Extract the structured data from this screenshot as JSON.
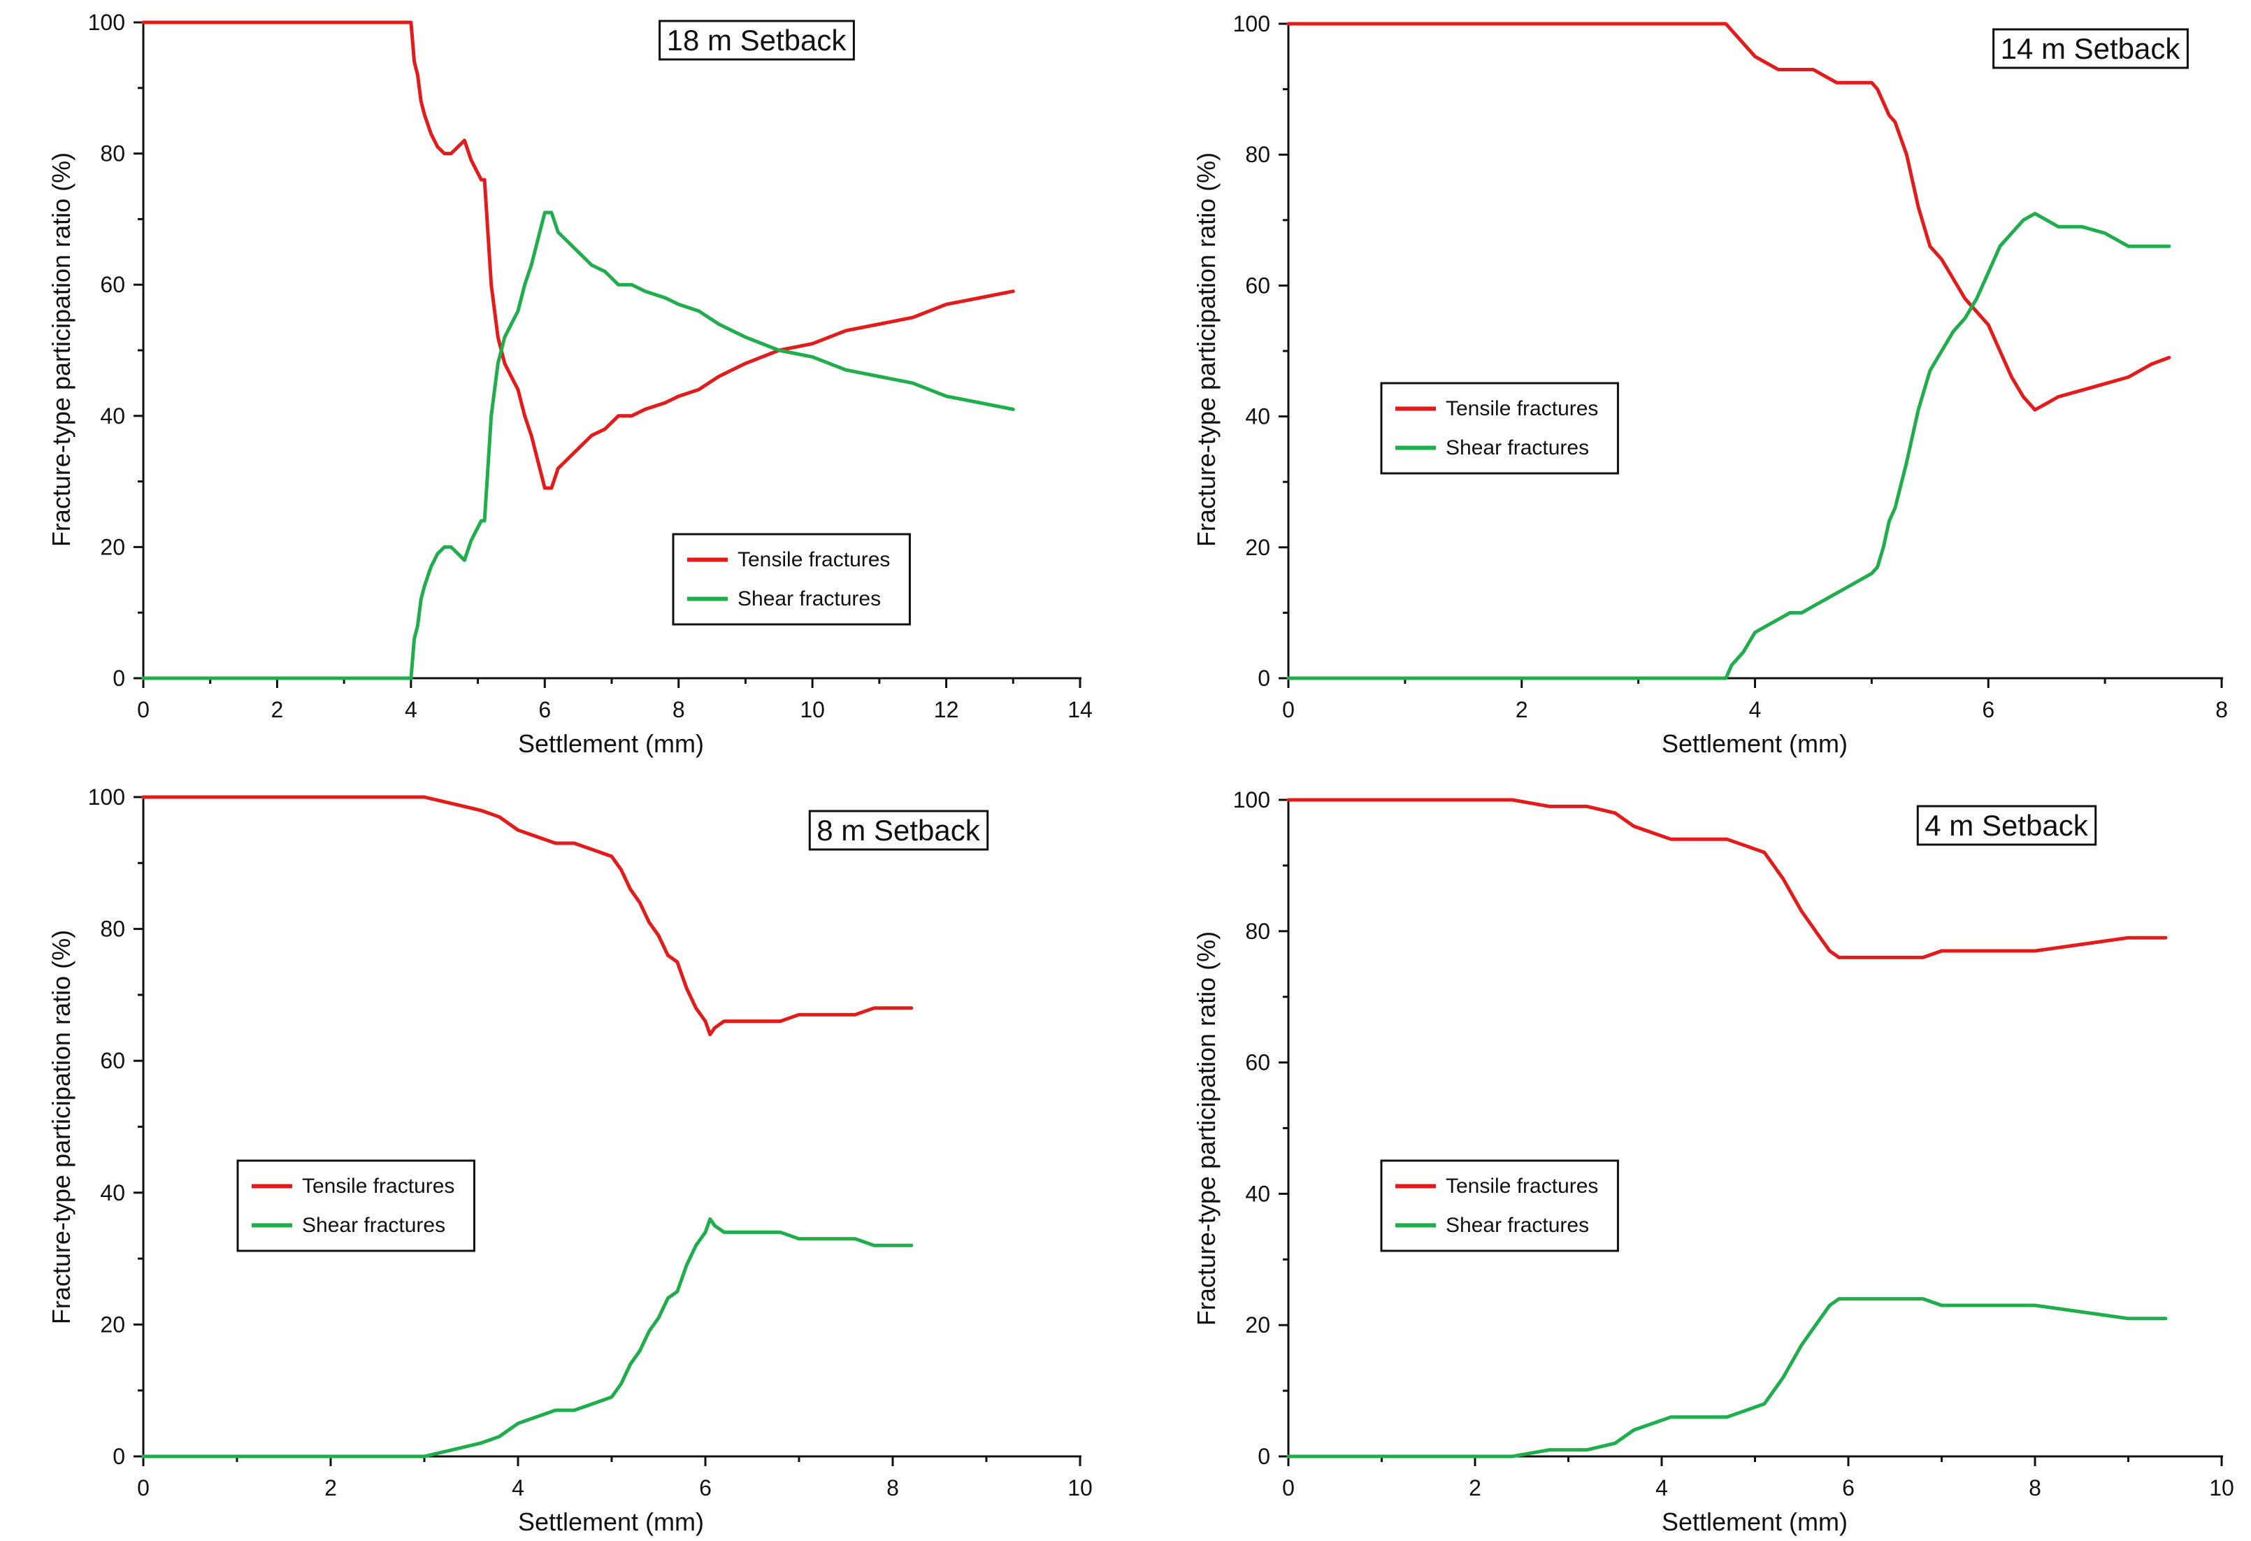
{
  "chart_data": [
    {
      "type": "line",
      "title": "18 m Setback",
      "xlabel": "Settlement (mm)",
      "ylabel": "Fracture-type participation ratio (%)",
      "xlim": [
        0,
        14
      ],
      "ylim": [
        0,
        100
      ],
      "xticks": [
        0,
        2,
        4,
        6,
        8,
        10,
        12,
        14
      ],
      "yticks": [
        0,
        20,
        40,
        60,
        80,
        100
      ],
      "legend_position": "lower-center",
      "series": [
        {
          "name": "Tensile fractures",
          "color": "#e31b1b",
          "x": [
            0,
            4.0,
            4.05,
            4.1,
            4.15,
            4.2,
            4.3,
            4.4,
            4.5,
            4.6,
            4.7,
            4.8,
            4.9,
            5.0,
            5.05,
            5.1,
            5.15,
            5.2,
            5.3,
            5.4,
            5.5,
            5.6,
            5.7,
            5.8,
            5.9,
            6.0,
            6.1,
            6.2,
            6.3,
            6.5,
            6.7,
            6.9,
            7.1,
            7.3,
            7.5,
            7.8,
            8.0,
            8.3,
            8.6,
            9.0,
            9.5,
            10.0,
            10.5,
            11.0,
            11.5,
            12.0,
            12.5,
            13.0
          ],
          "y": [
            100,
            100,
            94,
            92,
            88,
            86,
            83,
            81,
            80,
            80,
            81,
            82,
            79,
            77,
            76,
            76,
            68,
            60,
            52,
            48,
            46,
            44,
            40,
            37,
            33,
            29,
            29,
            32,
            33,
            35,
            37,
            38,
            40,
            40,
            41,
            42,
            43,
            44,
            46,
            48,
            50,
            51,
            53,
            54,
            55,
            57,
            58,
            59
          ]
        },
        {
          "name": "Shear fractures",
          "color": "#1fae4b",
          "x": [
            0,
            4.0,
            4.05,
            4.1,
            4.15,
            4.2,
            4.3,
            4.4,
            4.5,
            4.6,
            4.7,
            4.8,
            4.9,
            5.0,
            5.05,
            5.1,
            5.15,
            5.2,
            5.3,
            5.4,
            5.5,
            5.6,
            5.7,
            5.8,
            5.9,
            6.0,
            6.1,
            6.2,
            6.3,
            6.5,
            6.7,
            6.9,
            7.1,
            7.3,
            7.5,
            7.8,
            8.0,
            8.3,
            8.6,
            9.0,
            9.5,
            10.0,
            10.5,
            11.0,
            11.5,
            12.0,
            12.5,
            13.0
          ],
          "y": [
            0,
            0,
            6,
            8,
            12,
            14,
            17,
            19,
            20,
            20,
            19,
            18,
            21,
            23,
            24,
            24,
            32,
            40,
            48,
            52,
            54,
            56,
            60,
            63,
            67,
            71,
            71,
            68,
            67,
            65,
            63,
            62,
            60,
            60,
            59,
            58,
            57,
            56,
            54,
            52,
            50,
            49,
            47,
            46,
            45,
            43,
            42,
            41
          ]
        }
      ]
    },
    {
      "type": "line",
      "title": "14 m Setback",
      "xlabel": "Settlement (mm)",
      "ylabel": "Fracture-type participation ratio (%)",
      "xlim": [
        0,
        8
      ],
      "ylim": [
        0,
        100
      ],
      "xticks": [
        0,
        2,
        4,
        6,
        8
      ],
      "yticks": [
        0,
        20,
        40,
        60,
        80,
        100
      ],
      "legend_position": "center-left",
      "series": [
        {
          "name": "Tensile fractures",
          "color": "#e31b1b",
          "x": [
            0,
            3.75,
            3.8,
            3.9,
            4.0,
            4.1,
            4.2,
            4.3,
            4.4,
            4.5,
            4.6,
            4.7,
            4.8,
            4.9,
            5.0,
            5.05,
            5.1,
            5.15,
            5.2,
            5.3,
            5.4,
            5.5,
            5.6,
            5.7,
            5.8,
            5.9,
            6.0,
            6.1,
            6.2,
            6.3,
            6.4,
            6.5,
            6.6,
            6.8,
            7.0,
            7.2,
            7.4,
            7.55
          ],
          "y": [
            100,
            100,
            99,
            97,
            95,
            94,
            93,
            93,
            93,
            93,
            92,
            91,
            91,
            91,
            91,
            90,
            88,
            86,
            85,
            80,
            72,
            66,
            64,
            61,
            58,
            56,
            54,
            50,
            46,
            43,
            41,
            42,
            43,
            44,
            45,
            46,
            48,
            49
          ]
        },
        {
          "name": "Shear fractures",
          "color": "#1fae4b",
          "x": [
            0,
            3.75,
            3.8,
            3.9,
            4.0,
            4.1,
            4.2,
            4.3,
            4.4,
            4.5,
            4.6,
            4.7,
            4.8,
            4.9,
            5.0,
            5.05,
            5.1,
            5.15,
            5.2,
            5.3,
            5.4,
            5.5,
            5.6,
            5.7,
            5.8,
            5.9,
            6.0,
            6.1,
            6.2,
            6.3,
            6.4,
            6.5,
            6.6,
            6.8,
            7.0,
            7.2,
            7.4,
            7.55
          ],
          "y": [
            0,
            0,
            2,
            4,
            7,
            8,
            9,
            10,
            10,
            11,
            12,
            13,
            14,
            15,
            16,
            17,
            20,
            24,
            26,
            33,
            41,
            47,
            50,
            53,
            55,
            58,
            62,
            66,
            68,
            70,
            71,
            70,
            69,
            69,
            68,
            66,
            66,
            66
          ]
        }
      ]
    },
    {
      "type": "line",
      "title": "8 m Setback",
      "xlabel": "Settlement (mm)",
      "ylabel": "Fracture-type participation ratio (%)",
      "xlim": [
        0,
        10
      ],
      "ylim": [
        0,
        100
      ],
      "xticks": [
        0,
        2,
        4,
        6,
        8,
        10
      ],
      "yticks": [
        0,
        20,
        40,
        60,
        80,
        100
      ],
      "legend_position": "center-left",
      "series": [
        {
          "name": "Tensile fractures",
          "color": "#e31b1b",
          "x": [
            0,
            3.0,
            3.3,
            3.6,
            3.8,
            4.0,
            4.2,
            4.4,
            4.6,
            4.8,
            5.0,
            5.1,
            5.2,
            5.3,
            5.4,
            5.5,
            5.6,
            5.7,
            5.8,
            5.9,
            6.0,
            6.05,
            6.1,
            6.2,
            6.4,
            6.6,
            6.8,
            7.0,
            7.2,
            7.4,
            7.6,
            7.8,
            8.0,
            8.2
          ],
          "y": [
            100,
            100,
            99,
            98,
            97,
            95,
            94,
            93,
            93,
            92,
            91,
            89,
            86,
            84,
            81,
            79,
            76,
            75,
            71,
            68,
            66,
            64,
            65,
            66,
            66,
            66,
            66,
            67,
            67,
            67,
            67,
            68,
            68,
            68
          ]
        },
        {
          "name": "Shear fractures",
          "color": "#1fae4b",
          "x": [
            0,
            3.0,
            3.3,
            3.6,
            3.8,
            4.0,
            4.2,
            4.4,
            4.6,
            4.8,
            5.0,
            5.1,
            5.2,
            5.3,
            5.4,
            5.5,
            5.6,
            5.7,
            5.8,
            5.9,
            6.0,
            6.05,
            6.1,
            6.2,
            6.4,
            6.6,
            6.8,
            7.0,
            7.2,
            7.4,
            7.6,
            7.8,
            8.0,
            8.2
          ],
          "y": [
            0,
            0,
            1,
            2,
            3,
            5,
            6,
            7,
            7,
            8,
            9,
            11,
            14,
            16,
            19,
            21,
            24,
            25,
            29,
            32,
            34,
            36,
            35,
            34,
            34,
            34,
            34,
            33,
            33,
            33,
            33,
            32,
            32,
            32
          ]
        }
      ]
    },
    {
      "type": "line",
      "title": "4 m Setback",
      "xlabel": "Settlement (mm)",
      "ylabel": "Fracture-type participation ratio (%)",
      "xlim": [
        0,
        10
      ],
      "ylim": [
        0,
        100
      ],
      "xticks": [
        0,
        2,
        4,
        6,
        8,
        10
      ],
      "yticks": [
        0,
        20,
        40,
        60,
        80,
        100
      ],
      "legend_position": "center-left",
      "series": [
        {
          "name": "Tensile fractures",
          "color": "#e31b1b",
          "x": [
            0,
            2.4,
            2.8,
            3.2,
            3.5,
            3.7,
            3.9,
            4.1,
            4.3,
            4.5,
            4.7,
            4.9,
            5.1,
            5.3,
            5.5,
            5.7,
            5.8,
            5.9,
            6.0,
            6.2,
            6.4,
            6.6,
            6.8,
            7.0,
            7.2,
            7.5,
            8.0,
            8.5,
            9.0,
            9.4
          ],
          "y": [
            100,
            100,
            99,
            99,
            98,
            96,
            95,
            94,
            94,
            94,
            94,
            93,
            92,
            88,
            83,
            79,
            77,
            76,
            76,
            76,
            76,
            76,
            76,
            77,
            77,
            77,
            77,
            78,
            79,
            79
          ]
        },
        {
          "name": "Shear fractures",
          "color": "#1fae4b",
          "x": [
            0,
            2.4,
            2.8,
            3.2,
            3.5,
            3.7,
            3.9,
            4.1,
            4.3,
            4.5,
            4.7,
            4.9,
            5.1,
            5.3,
            5.5,
            5.7,
            5.8,
            5.9,
            6.0,
            6.2,
            6.4,
            6.6,
            6.8,
            7.0,
            7.2,
            7.5,
            8.0,
            8.5,
            9.0,
            9.4
          ],
          "y": [
            0,
            0,
            1,
            1,
            2,
            4,
            5,
            6,
            6,
            6,
            6,
            7,
            8,
            12,
            17,
            21,
            23,
            24,
            24,
            24,
            24,
            24,
            24,
            23,
            23,
            23,
            23,
            22,
            21,
            21
          ]
        }
      ]
    }
  ]
}
